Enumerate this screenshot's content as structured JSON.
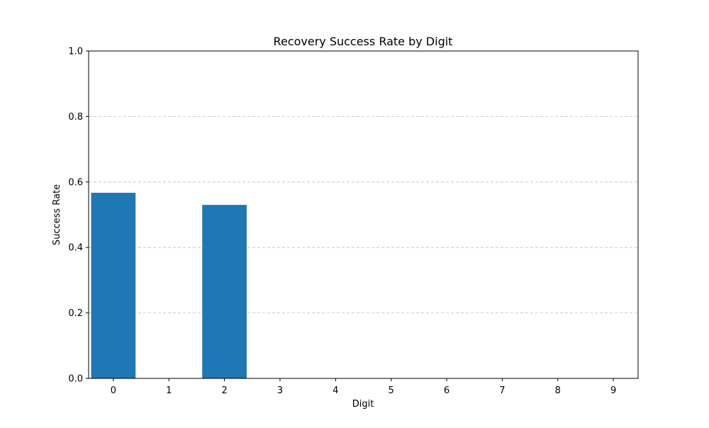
{
  "chart_data": {
    "type": "bar",
    "title": "Recovery Success Rate by Digit",
    "xlabel": "Digit",
    "ylabel": "Success Rate",
    "categories": [
      "0",
      "1",
      "2",
      "3",
      "4",
      "5",
      "6",
      "7",
      "8",
      "9"
    ],
    "values": [
      0.567,
      0.0,
      0.53,
      0.0,
      0.0,
      0.0,
      0.0,
      0.0,
      0.0,
      0.0
    ],
    "ylim": [
      0,
      1.0
    ],
    "yticks": [
      "0.0",
      "0.2",
      "0.4",
      "0.6",
      "0.8",
      "1.0"
    ],
    "grid": "y-dashed",
    "bar_color": "#1f77b4",
    "grid_color": "#c0c0c0"
  }
}
